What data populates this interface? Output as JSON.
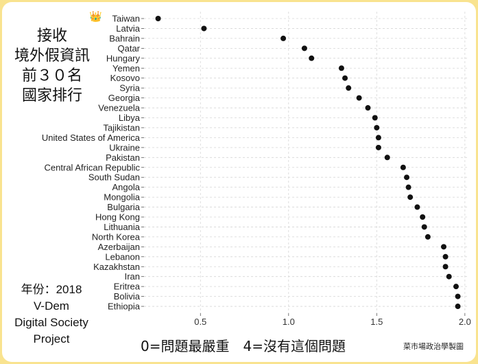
{
  "side_title": [
    "接收",
    "境外假資訊",
    "前３０名",
    "國家排行"
  ],
  "side_note": [
    "年份：2018",
    "V-Dem",
    "Digital Society",
    "Project"
  ],
  "top_marker": "👑",
  "credit": "菜市場政治學製圖",
  "chart_data": {
    "type": "scatter",
    "xlabel": "0=問題最嚴重　4=沒有這個問題",
    "ylabel": "",
    "title": "",
    "xlim": [
      0.18,
      2.02
    ],
    "xticks": [
      0.5,
      1.0,
      1.5,
      2.0
    ],
    "xtick_labels": [
      "0.5",
      "1.0",
      "1.5",
      "2.0"
    ],
    "grid": true,
    "categories": [
      "Taiwan",
      "Latvia",
      "Bahrain",
      "Qatar",
      "Hungary",
      "Yemen",
      "Kosovo",
      "Syria",
      "Georgia",
      "Venezuela",
      "Libya",
      "Tajikistan",
      "United States of America",
      "Ukraine",
      "Pakistan",
      "Central African Republic",
      "South Sudan",
      "Angola",
      "Mongolia",
      "Bulgaria",
      "Hong Kong",
      "Lithuania",
      "North Korea",
      "Azerbaijan",
      "Lebanon",
      "Kazakhstan",
      "Iran",
      "Eritrea",
      "Bolivia",
      "Ethiopia"
    ],
    "values": [
      0.26,
      0.52,
      0.97,
      1.09,
      1.13,
      1.3,
      1.32,
      1.34,
      1.4,
      1.45,
      1.49,
      1.5,
      1.51,
      1.51,
      1.56,
      1.65,
      1.67,
      1.68,
      1.69,
      1.73,
      1.76,
      1.77,
      1.79,
      1.88,
      1.89,
      1.89,
      1.91,
      1.95,
      1.96,
      1.96
    ]
  }
}
